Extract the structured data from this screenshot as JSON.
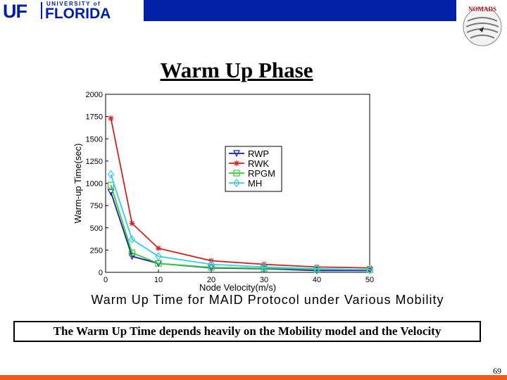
{
  "header": {
    "logo_mark": "UF",
    "logo_university": "UNIVERSITY of",
    "logo_name": "FLORIDA",
    "lab_logo_text": "NOMADS"
  },
  "slide": {
    "title": "Warm Up Phase",
    "caption": "The Warm Up Time depends heavily on the Mobility model and the Velocity",
    "page_number": "69"
  },
  "colors": {
    "uf_blue": "#0021a5",
    "accent_orange": "#f05a1a"
  },
  "chart_data": {
    "type": "line",
    "title": "Warm Up Time for MAID Protocol under Various Mobility",
    "xlabel": "Node Velocity(m/s)",
    "ylabel": "Warm-up Time(sec)",
    "xlim": [
      0,
      50
    ],
    "ylim": [
      0,
      2000
    ],
    "xticks": [
      0,
      10,
      20,
      30,
      40,
      50
    ],
    "yticks": [
      0,
      250,
      500,
      750,
      1000,
      1250,
      1500,
      1750,
      2000
    ],
    "grid": false,
    "legend_position": "upper-center",
    "x": [
      1,
      5,
      10,
      20,
      30,
      40,
      50
    ],
    "series": [
      {
        "name": "RWP",
        "color": "#1a1aa8",
        "marker": "triangle-down",
        "values": [
          900,
          180,
          100,
          50,
          40,
          20,
          20
        ]
      },
      {
        "name": "RWK",
        "color": "#d62020",
        "marker": "star",
        "values": [
          1730,
          550,
          270,
          130,
          90,
          60,
          50
        ]
      },
      {
        "name": "RPGM",
        "color": "#33cc33",
        "marker": "square",
        "values": [
          980,
          220,
          100,
          55,
          45,
          35,
          30
        ]
      },
      {
        "name": "MH",
        "color": "#33ccee",
        "marker": "diamond",
        "values": [
          1100,
          370,
          180,
          90,
          60,
          40,
          30
        ]
      }
    ]
  }
}
